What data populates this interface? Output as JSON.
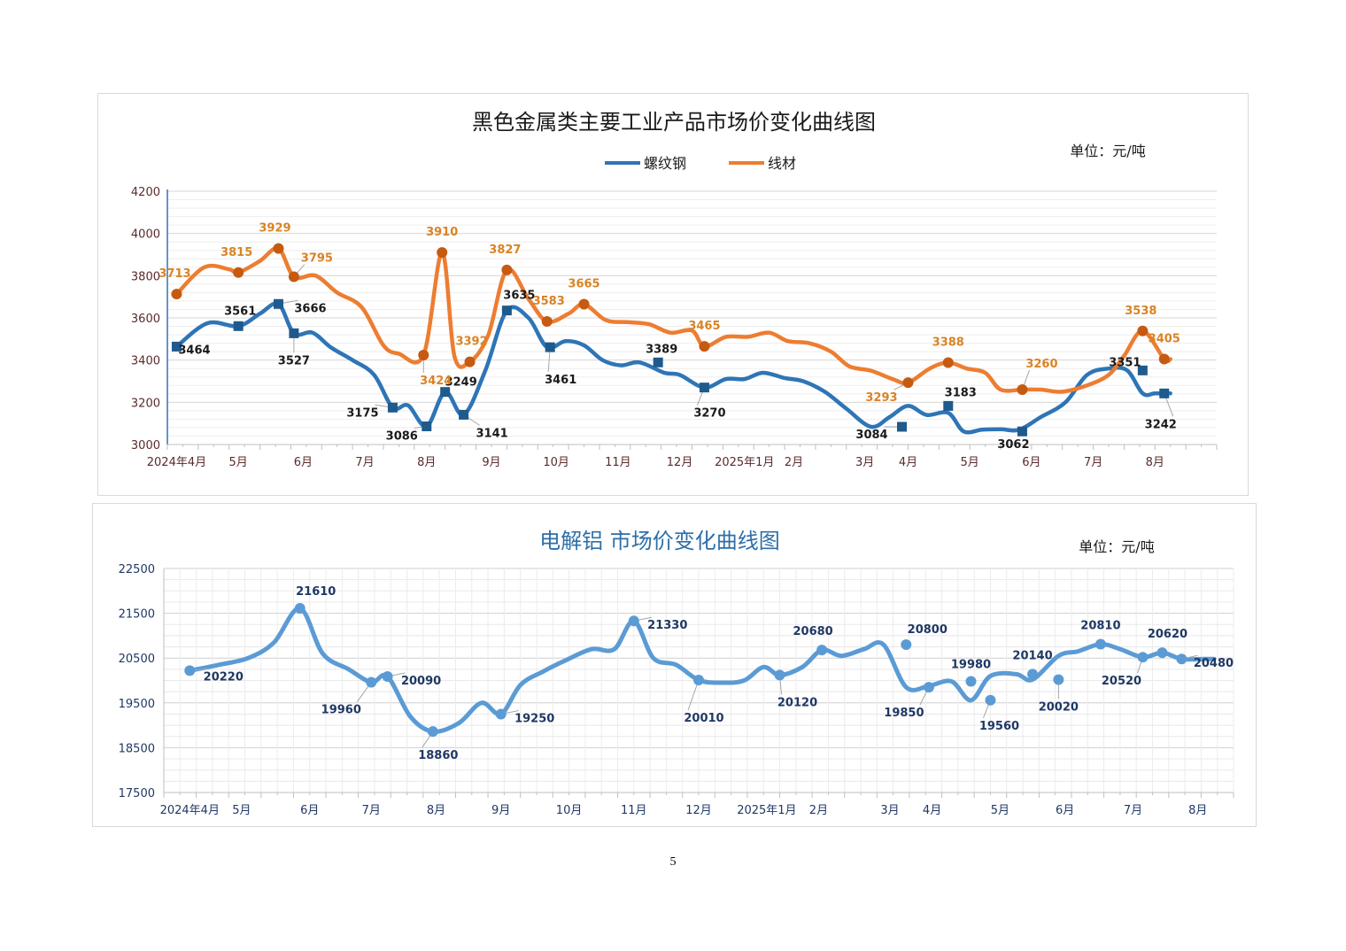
{
  "page": {
    "number": "5"
  },
  "colors": {
    "rebar": "#2e75b6",
    "rebar_marker": "#1f5a8c",
    "wire": "#ed7d31",
    "wire_marker": "#c55a11",
    "wire_label": "#d98324",
    "rebar_label": "#1a1a1a",
    "aluminum": "#5b9bd5",
    "aluminum_label": "#1f3864",
    "axis_label": "#5a2a2a",
    "title2": "#2e6fa8"
  },
  "chart_data": [
    {
      "type": "line",
      "title": "黑色金属类主要工业产品市场价变化曲线图",
      "unit": "单位：元/吨",
      "legend_position": "top",
      "ylim": [
        3000,
        4200
      ],
      "yticks": [
        "3000",
        "3200",
        "3400",
        "3600",
        "3800",
        "4000",
        "4200"
      ],
      "xlim": [
        0,
        34
      ],
      "xticks": [
        {
          "label": "2024年4月",
          "x": 0.3
        },
        {
          "label": "5月",
          "x": 2.3
        },
        {
          "label": "6月",
          "x": 4.4
        },
        {
          "label": "7月",
          "x": 6.4
        },
        {
          "label": "8月",
          "x": 8.4
        },
        {
          "label": "9月",
          "x": 10.5
        },
        {
          "label": "10月",
          "x": 12.6
        },
        {
          "label": "11月",
          "x": 14.6
        },
        {
          "label": "12月",
          "x": 16.6
        },
        {
          "label": "2025年1月",
          "x": 18.7
        },
        {
          "label": "2月",
          "x": 20.3
        },
        {
          "label": "3月",
          "x": 22.6
        },
        {
          "label": "4月",
          "x": 24.0
        },
        {
          "label": "5月",
          "x": 26.0
        },
        {
          "label": "6月",
          "x": 28.0
        },
        {
          "label": "7月",
          "x": 30.0
        },
        {
          "label": "8月",
          "x": 32.0
        }
      ],
      "series": [
        {
          "name": "螺纹钢",
          "x": [
            0.3,
            1.3,
            2.3,
            3.0,
            3.6,
            4.1,
            4.7,
            5.3,
            6.0,
            6.7,
            7.3,
            7.8,
            8.4,
            9.0,
            9.6,
            10.3,
            11.0,
            11.7,
            12.3,
            12.9,
            13.5,
            14.1,
            14.7,
            15.3,
            16.1,
            16.6,
            17.4,
            18.1,
            18.7,
            19.3,
            20.0,
            20.6,
            21.3,
            22.0,
            22.8,
            23.4,
            24.0,
            24.6,
            25.3,
            25.8,
            26.4,
            27.0,
            27.6,
            28.3,
            29.1,
            29.8,
            30.5,
            31.1,
            31.6,
            32.0,
            32.5
          ],
          "y": [
            3464,
            3575,
            3561,
            3620,
            3666,
            3527,
            3530,
            3460,
            3400,
            3330,
            3175,
            3185,
            3086,
            3249,
            3141,
            3350,
            3635,
            3600,
            3461,
            3490,
            3470,
            3400,
            3375,
            3389,
            3340,
            3330,
            3270,
            3310,
            3310,
            3340,
            3315,
            3300,
            3250,
            3170,
            3084,
            3130,
            3183,
            3140,
            3150,
            3062,
            3070,
            3072,
            3070,
            3130,
            3200,
            3330,
            3360,
            3351,
            3242,
            3242,
            3242
          ],
          "markers": [
            {
              "x": 0.3,
              "y": 3464,
              "label": "3464",
              "dx": 20,
              "dy": 3
            },
            {
              "x": 2.3,
              "y": 3561,
              "label": "3561",
              "dx": 2,
              "dy": -18
            },
            {
              "x": 3.6,
              "y": 3666,
              "label": "3666",
              "dx": 36,
              "dy": 4
            },
            {
              "x": 4.1,
              "y": 3527,
              "label": "3527",
              "dx": 0,
              "dy": 30
            },
            {
              "x": 7.3,
              "y": 3175,
              "label": "3175",
              "dx": -34,
              "dy": 5
            },
            {
              "x": 8.4,
              "y": 3086,
              "label": "3086",
              "dx": -28,
              "dy": 10
            },
            {
              "x": 9.0,
              "y": 3249,
              "label": "3249",
              "dx": 18,
              "dy": -12
            },
            {
              "x": 9.6,
              "y": 3141,
              "label": "3141",
              "dx": 32,
              "dy": 20
            },
            {
              "x": 11.0,
              "y": 3635,
              "label": "3635",
              "dx": 14,
              "dy": -18
            },
            {
              "x": 12.4,
              "y": 3461,
              "label": "3461",
              "dx": 12,
              "dy": 36
            },
            {
              "x": 15.9,
              "y": 3389,
              "label": "3389",
              "dx": 4,
              "dy": -16
            },
            {
              "x": 17.4,
              "y": 3270,
              "label": "3270",
              "dx": 6,
              "dy": 28
            },
            {
              "x": 23.8,
              "y": 3084,
              "label": "3084",
              "dx": -34,
              "dy": 8
            },
            {
              "x": 25.3,
              "y": 3183,
              "label": "3183",
              "dx": 14,
              "dy": -16
            },
            {
              "x": 27.7,
              "y": 3062,
              "label": "3062",
              "dx": -10,
              "dy": 14
            },
            {
              "x": 31.6,
              "y": 3351,
              "label": "3351",
              "dx": -20,
              "dy": -10
            },
            {
              "x": 32.3,
              "y": 3242,
              "label": "3242",
              "dx": -4,
              "dy": 34
            }
          ]
        },
        {
          "name": "线材",
          "x": [
            0.3,
            1.2,
            2.0,
            2.3,
            3.0,
            3.6,
            4.1,
            4.8,
            5.5,
            6.3,
            7.0,
            7.5,
            8.3,
            8.9,
            9.3,
            9.8,
            10.4,
            11.0,
            11.7,
            12.3,
            13.0,
            13.5,
            14.2,
            14.9,
            15.6,
            16.3,
            17.0,
            17.4,
            18.1,
            18.8,
            19.5,
            20.1,
            20.8,
            21.5,
            22.1,
            22.8,
            23.5,
            24.0,
            24.7,
            25.3,
            25.9,
            26.5,
            27.0,
            27.7,
            28.3,
            29.0,
            29.8,
            30.5,
            31.0,
            31.6,
            32.3,
            32.5
          ],
          "y": [
            3713,
            3840,
            3830,
            3815,
            3870,
            3929,
            3795,
            3800,
            3720,
            3650,
            3470,
            3430,
            3424,
            3910,
            3420,
            3392,
            3520,
            3827,
            3690,
            3583,
            3620,
            3665,
            3590,
            3580,
            3570,
            3530,
            3540,
            3465,
            3510,
            3510,
            3530,
            3490,
            3480,
            3440,
            3370,
            3350,
            3310,
            3293,
            3360,
            3388,
            3360,
            3340,
            3260,
            3260,
            3260,
            3250,
            3280,
            3330,
            3420,
            3538,
            3405,
            3405
          ],
          "markers": [
            {
              "x": 0.3,
              "y": 3713,
              "label": "3713",
              "dx": -2,
              "dy": -24
            },
            {
              "x": 2.3,
              "y": 3815,
              "label": "3815",
              "dx": -2,
              "dy": -24
            },
            {
              "x": 3.6,
              "y": 3929,
              "label": "3929",
              "dx": -4,
              "dy": -24
            },
            {
              "x": 4.1,
              "y": 3795,
              "label": "3795",
              "dx": 26,
              "dy": -22
            },
            {
              "x": 8.3,
              "y": 3424,
              "label": "3424",
              "dx": 14,
              "dy": 28
            },
            {
              "x": 8.9,
              "y": 3910,
              "label": "3910",
              "dx": 0,
              "dy": -24
            },
            {
              "x": 9.8,
              "y": 3392,
              "label": "3392",
              "dx": 2,
              "dy": -24
            },
            {
              "x": 11.0,
              "y": 3827,
              "label": "3827",
              "dx": -2,
              "dy": -24
            },
            {
              "x": 12.3,
              "y": 3583,
              "label": "3583",
              "dx": 2,
              "dy": -24
            },
            {
              "x": 13.5,
              "y": 3665,
              "label": "3665",
              "dx": 0,
              "dy": -24
            },
            {
              "x": 17.4,
              "y": 3465,
              "label": "3465",
              "dx": 0,
              "dy": -24
            },
            {
              "x": 24.0,
              "y": 3293,
              "label": "3293",
              "dx": -30,
              "dy": 16
            },
            {
              "x": 25.3,
              "y": 3388,
              "label": "3388",
              "dx": 0,
              "dy": -24
            },
            {
              "x": 27.7,
              "y": 3260,
              "label": "3260",
              "dx": 22,
              "dy": -30
            },
            {
              "x": 31.6,
              "y": 3538,
              "label": "3538",
              "dx": -2,
              "dy": -24
            },
            {
              "x": 32.3,
              "y": 3405,
              "label": "3405",
              "dx": 0,
              "dy": -24
            }
          ]
        }
      ]
    },
    {
      "type": "line",
      "title": "电解铝 市场价变化曲线图",
      "unit": "单位：元/吨",
      "ylim": [
        17500,
        22500
      ],
      "yticks": [
        "17500",
        "18500",
        "19500",
        "20500",
        "21500",
        "22500"
      ],
      "xlim": [
        0,
        33
      ],
      "xticks": [
        {
          "label": "2024年4月",
          "x": 0.8
        },
        {
          "label": "5月",
          "x": 2.4
        },
        {
          "label": "6月",
          "x": 4.5
        },
        {
          "label": "7月",
          "x": 6.4
        },
        {
          "label": "8月",
          "x": 8.4
        },
        {
          "label": "9月",
          "x": 10.4
        },
        {
          "label": "10月",
          "x": 12.5
        },
        {
          "label": "11月",
          "x": 14.5
        },
        {
          "label": "12月",
          "x": 16.5
        },
        {
          "label": "2025年1月",
          "x": 18.6
        },
        {
          "label": "2月",
          "x": 20.2
        },
        {
          "label": "3月",
          "x": 22.4
        },
        {
          "label": "4月",
          "x": 23.7
        },
        {
          "label": "5月",
          "x": 25.8
        },
        {
          "label": "6月",
          "x": 27.8
        },
        {
          "label": "7月",
          "x": 29.9
        },
        {
          "label": "8月",
          "x": 31.9
        }
      ],
      "series": [
        {
          "name": "电解铝",
          "x": [
            0.8,
            1.7,
            2.6,
            3.4,
            4.2,
            4.9,
            5.7,
            6.4,
            6.9,
            7.6,
            8.3,
            9.1,
            9.8,
            10.4,
            11.0,
            11.7,
            12.4,
            13.2,
            13.9,
            14.5,
            15.1,
            15.8,
            16.5,
            17.2,
            17.9,
            18.5,
            19.0,
            19.7,
            20.3,
            20.9,
            21.6,
            22.2,
            22.9,
            23.6,
            24.3,
            24.9,
            25.5,
            26.3,
            26.8,
            27.6,
            28.2,
            28.9,
            29.5,
            30.2,
            30.8,
            31.4,
            32.1,
            32.4
          ],
          "y": [
            20220,
            20350,
            20500,
            20850,
            21610,
            20600,
            20250,
            19960,
            20090,
            19200,
            18860,
            19050,
            19500,
            19250,
            19900,
            20200,
            20450,
            20700,
            20700,
            21330,
            20500,
            20350,
            20010,
            19950,
            20000,
            20300,
            20120,
            20300,
            20680,
            20550,
            20700,
            20800,
            19850,
            19880,
            19980,
            19560,
            20100,
            20140,
            20020,
            20550,
            20650,
            20810,
            20700,
            20520,
            20620,
            20480,
            20480,
            20480
          ],
          "markers": [
            {
              "x": 0.8,
              "y": 20220,
              "label": "20220",
              "dx": 38,
              "dy": 6
            },
            {
              "x": 4.2,
              "y": 21610,
              "label": "21610",
              "dx": 18,
              "dy": -20
            },
            {
              "x": 6.4,
              "y": 19960,
              "label": "19960",
              "dx": -34,
              "dy": 30
            },
            {
              "x": 6.9,
              "y": 20090,
              "label": "20090",
              "dx": 38,
              "dy": 4
            },
            {
              "x": 8.3,
              "y": 18860,
              "label": "18860",
              "dx": 6,
              "dy": 26
            },
            {
              "x": 10.4,
              "y": 19250,
              "label": "19250",
              "dx": 38,
              "dy": 4
            },
            {
              "x": 14.5,
              "y": 21330,
              "label": "21330",
              "dx": 38,
              "dy": 4
            },
            {
              "x": 16.5,
              "y": 20010,
              "label": "20010",
              "dx": 6,
              "dy": 42
            },
            {
              "x": 19.0,
              "y": 20120,
              "label": "20120",
              "dx": 20,
              "dy": 30
            },
            {
              "x": 20.3,
              "y": 20680,
              "label": "20680",
              "dx": -10,
              "dy": -22
            },
            {
              "x": 22.9,
              "y": 20800,
              "label": "20800",
              "dx": 24,
              "dy": -18
            },
            {
              "x": 23.6,
              "y": 19850,
              "label": "19850",
              "dx": -28,
              "dy": 28
            },
            {
              "x": 24.9,
              "y": 19980,
              "label": "19980",
              "dx": 0,
              "dy": -20
            },
            {
              "x": 25.5,
              "y": 19560,
              "label": "19560",
              "dx": 10,
              "dy": 28
            },
            {
              "x": 26.8,
              "y": 20140,
              "label": "20140",
              "dx": 0,
              "dy": -22
            },
            {
              "x": 27.6,
              "y": 20020,
              "label": "20020",
              "dx": 0,
              "dy": 30
            },
            {
              "x": 28.9,
              "y": 20810,
              "label": "20810",
              "dx": 0,
              "dy": -22
            },
            {
              "x": 30.2,
              "y": 20520,
              "label": "20520",
              "dx": -24,
              "dy": 26
            },
            {
              "x": 30.8,
              "y": 20620,
              "label": "20620",
              "dx": 6,
              "dy": -22
            },
            {
              "x": 31.4,
              "y": 20480,
              "label": "20480",
              "dx": 36,
              "dy": 4
            }
          ]
        }
      ]
    }
  ]
}
